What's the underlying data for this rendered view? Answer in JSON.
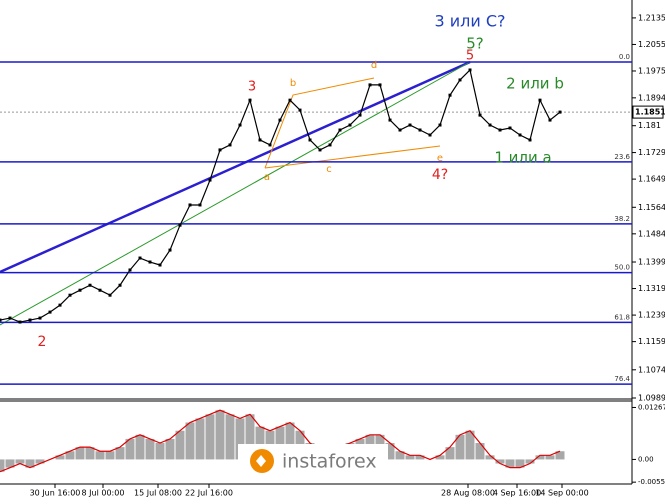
{
  "chart_data": [
    {
      "type": "line",
      "color": "#000000",
      "values": [
        1.1224,
        1.123,
        1.1218,
        1.1224,
        1.123,
        1.1248,
        1.1269,
        1.1299,
        1.1314,
        1.1329,
        1.1314,
        1.1299,
        1.1329,
        1.1375,
        1.1411,
        1.1399,
        1.139,
        1.1435,
        1.151,
        1.1571,
        1.1571,
        1.1646,
        1.1737,
        1.1752,
        1.1812,
        1.1887,
        1.1767,
        1.1752,
        1.1827,
        1.1887,
        1.1857,
        1.1767,
        1.1737,
        1.1752,
        1.1797,
        1.1812,
        1.1842,
        1.1933,
        1.1933,
        1.1827,
        1.1797,
        1.1812,
        1.1797,
        1.1782,
        1.1812,
        1.1902,
        1.1948,
        1.1978,
        1.1842,
        1.1812,
        1.1797,
        1.1803,
        1.1782,
        1.1767,
        1.1887,
        1.1827,
        1.1851
      ],
      "ylim": [
        1.0989,
        1.2189
      ],
      "yticks": [
        1.2135,
        1.2055,
        1.1975,
        1.1894,
        1.181,
        1.1729,
        1.1649,
        1.1564,
        1.1484,
        1.1399,
        1.1319,
        1.1239,
        1.1159,
        1.1074,
        1.0989
      ],
      "current_price": 1.1851,
      "xticks": [
        {
          "value": 5.5,
          "label": "30 Jun 16:00"
        },
        {
          "value": 10.3,
          "label": "8 Jul 00:00"
        },
        {
          "value": 15.8,
          "label": "15 Jul 08:00"
        },
        {
          "value": 20.9,
          "label": "22 Jul 16:00"
        },
        {
          "value": 46.8,
          "label": "28 Aug 08:00"
        },
        {
          "value": 51.7,
          "label": "4 Sep 16:00"
        },
        {
          "value": 56.2,
          "label": "14 Sep 00:00"
        }
      ],
      "level_color": "#1a1acc",
      "levels": [
        {
          "value": 1.2002,
          "label": "0.0"
        },
        {
          "value": 1.1701,
          "label": "23.6"
        },
        {
          "value": 1.1514,
          "label": "38.2"
        },
        {
          "value": 1.1367,
          "label": "50.0"
        },
        {
          "value": 1.1217,
          "label": "61.8"
        },
        {
          "value": 1.1031,
          "label": "76.4"
        }
      ],
      "annotations": [
        {
          "text": "3 или C?",
          "color": "#1f3fbf"
        },
        {
          "text": "5?",
          "color": "#2a8a2a"
        },
        {
          "text": "5",
          "color": "#e02020"
        },
        {
          "text": "3",
          "color": "#e02020"
        },
        {
          "text": "b",
          "color": "#f08a00"
        },
        {
          "text": "d",
          "color": "#f08a00"
        },
        {
          "text": "2 или b",
          "color": "#2a8a2a"
        },
        {
          "text": "1 или a",
          "color": "#2a8a2a"
        },
        {
          "text": "a",
          "color": "#f08a00"
        },
        {
          "text": "c",
          "color": "#f08a00"
        },
        {
          "text": "e",
          "color": "#f08a00"
        },
        {
          "text": "4?",
          "color": "#e02020"
        },
        {
          "text": "2",
          "color": "#e02020"
        }
      ]
    },
    {
      "type": "bar",
      "color": "#a8a8a8",
      "signal_color": "#e00000",
      "values": [
        -0.003,
        -0.002,
        -0.001,
        -0.002,
        -0.001,
        0,
        0.001,
        0.002,
        0.003,
        0.003,
        0.002,
        0.002,
        0.003,
        0.005,
        0.006,
        0.005,
        0.004,
        0.005,
        0.007,
        0.009,
        0.01,
        0.011,
        0.012,
        0.011,
        0.01,
        0.011,
        0.008,
        0.007,
        0.008,
        0.009,
        0.007,
        0.004,
        0.002,
        0.002,
        0.003,
        0.004,
        0.005,
        0.006,
        0.006,
        0.004,
        0.002,
        0.001,
        0.001,
        0,
        0.001,
        0.003,
        0.006,
        0.007,
        0.004,
        0.001,
        -0.001,
        -0.002,
        -0.002,
        -0.001,
        0.001,
        0.001,
        0.002
      ],
      "ylim": [
        -0.0055,
        0.014
      ],
      "yticks": [
        0.01267,
        {
          "value": 0,
          "label": "0.00"
        },
        -0.00554
      ]
    }
  ],
  "watermark": "instaforex"
}
